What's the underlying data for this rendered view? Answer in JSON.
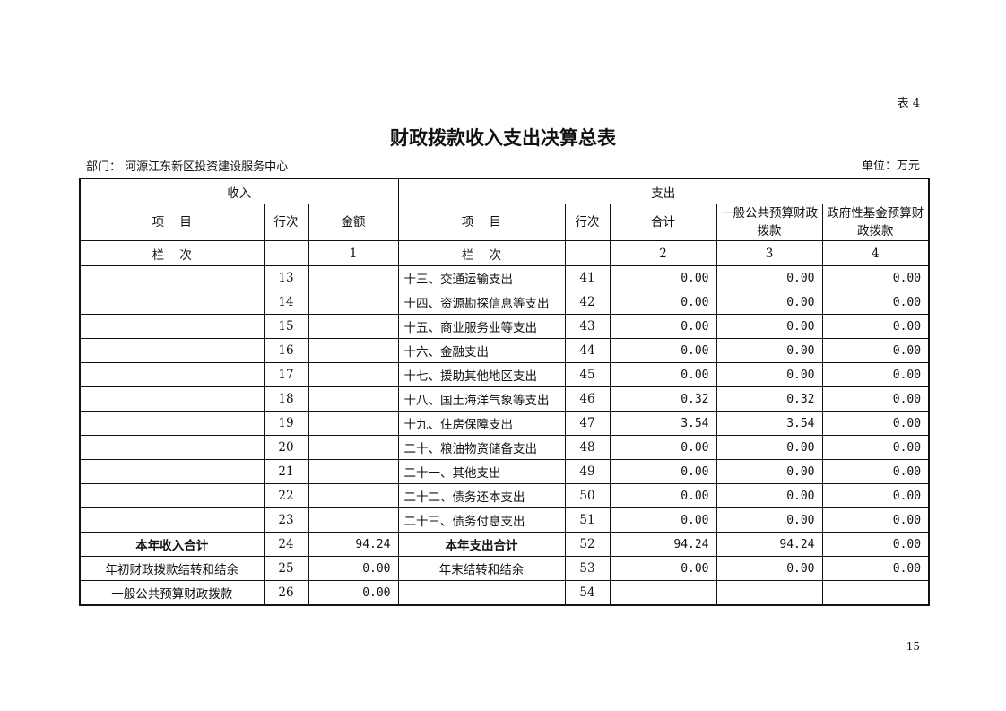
{
  "table_no": "表 4",
  "title": "财政拨款收入支出决算总表",
  "department": "部门：  河源江东新区投资建设服务中心",
  "unit": "单位：万元",
  "headers": {
    "income": "收入",
    "expense": "支出",
    "item": "项    目",
    "line": "行次",
    "amount": "金额",
    "exp_item": "项    目",
    "exp_line": "行次",
    "total": "合计",
    "general": "一般公共预算财政拨款",
    "fund": "政府性基金预算财政拨款",
    "col_label": "栏    次",
    "c1": "1",
    "exp_col_label": "栏    次",
    "c2": "2",
    "c3": "3",
    "c4": "4"
  },
  "rows": [
    {
      "in_item": "",
      "in_line": "13",
      "in_amount": "",
      "ex_item": "十三、交通运输支出",
      "ex_line": "41",
      "total": "0.00",
      "general": "0.00",
      "fund": "0.00"
    },
    {
      "in_item": "",
      "in_line": "14",
      "in_amount": "",
      "ex_item": "十四、资源勘探信息等支出",
      "ex_line": "42",
      "total": "0.00",
      "general": "0.00",
      "fund": "0.00"
    },
    {
      "in_item": "",
      "in_line": "15",
      "in_amount": "",
      "ex_item": "十五、商业服务业等支出",
      "ex_line": "43",
      "total": "0.00",
      "general": "0.00",
      "fund": "0.00"
    },
    {
      "in_item": "",
      "in_line": "16",
      "in_amount": "",
      "ex_item": "十六、金融支出",
      "ex_line": "44",
      "total": "0.00",
      "general": "0.00",
      "fund": "0.00"
    },
    {
      "in_item": "",
      "in_line": "17",
      "in_amount": "",
      "ex_item": "十七、援助其他地区支出",
      "ex_line": "45",
      "total": "0.00",
      "general": "0.00",
      "fund": "0.00"
    },
    {
      "in_item": "",
      "in_line": "18",
      "in_amount": "",
      "ex_item": "十八、国土海洋气象等支出",
      "ex_line": "46",
      "total": "0.32",
      "general": "0.32",
      "fund": "0.00"
    },
    {
      "in_item": "",
      "in_line": "19",
      "in_amount": "",
      "ex_item": "十九、住房保障支出",
      "ex_line": "47",
      "total": "3.54",
      "general": "3.54",
      "fund": "0.00"
    },
    {
      "in_item": "",
      "in_line": "20",
      "in_amount": "",
      "ex_item": "二十、粮油物资储备支出",
      "ex_line": "48",
      "total": "0.00",
      "general": "0.00",
      "fund": "0.00"
    },
    {
      "in_item": "",
      "in_line": "21",
      "in_amount": "",
      "ex_item": "二十一、其他支出",
      "ex_line": "49",
      "total": "0.00",
      "general": "0.00",
      "fund": "0.00"
    },
    {
      "in_item": "",
      "in_line": "22",
      "in_amount": "",
      "ex_item": "二十二、债务还本支出",
      "ex_line": "50",
      "total": "0.00",
      "general": "0.00",
      "fund": "0.00"
    },
    {
      "in_item": "",
      "in_line": "23",
      "in_amount": "",
      "ex_item": "二十三、债务付息支出",
      "ex_line": "51",
      "total": "0.00",
      "general": "0.00",
      "fund": "0.00"
    },
    {
      "in_item": "本年收入合计",
      "in_line": "24",
      "in_amount": "94.24",
      "ex_item": "本年支出合计",
      "ex_line": "52",
      "total": "94.24",
      "general": "94.24",
      "fund": "0.00",
      "bold": true
    },
    {
      "in_item": "年初财政拨款结转和结余",
      "in_line": "25",
      "in_amount": "0.00",
      "ex_item": "年末结转和结余",
      "ex_line": "53",
      "total": "0.00",
      "general": "0.00",
      "fund": "0.00",
      "center": true
    },
    {
      "in_item": "一般公共预算财政拨款",
      "in_line": "26",
      "in_amount": "0.00",
      "ex_item": "",
      "ex_line": "54",
      "total": "",
      "general": "",
      "fund": "",
      "center": true
    }
  ],
  "page_number": "15"
}
